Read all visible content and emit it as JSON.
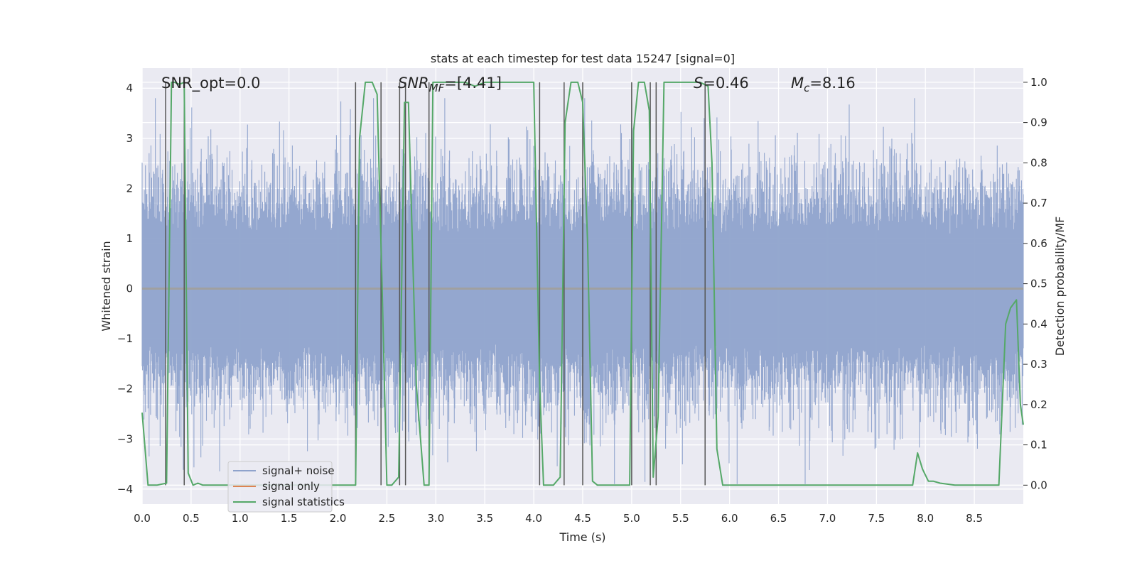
{
  "chart_data": {
    "type": "line",
    "title": "stats at each timestep for test data 15247 [signal=0]",
    "xlabel": "Time (s)",
    "ylabel": "Whitened strain",
    "y2label": "Detection probability/MF",
    "xlim": [
      0,
      9.0
    ],
    "ylim": [
      -4.3,
      4.4
    ],
    "y2lim": [
      -0.047,
      1.035
    ],
    "x_ticks": [
      "0.0",
      "0.5",
      "1.0",
      "1.5",
      "2.0",
      "2.5",
      "3.0",
      "3.5",
      "4.0",
      "4.5",
      "5.0",
      "5.5",
      "6.0",
      "6.5",
      "7.0",
      "7.5",
      "8.0",
      "8.5"
    ],
    "y_ticks": [
      "4",
      "3",
      "2",
      "1",
      "0",
      "−1",
      "−2",
      "−3",
      "−4"
    ],
    "y2_ticks": [
      "1.0",
      "0.9",
      "0.8",
      "0.7",
      "0.6",
      "0.5",
      "0.4",
      "0.3",
      "0.2",
      "0.1",
      "0.0"
    ],
    "grid": true,
    "legend_placement": "lower-left",
    "annotations": {
      "snr_opt": "SNR_opt=0.0",
      "snr_mf_base": "SNR",
      "snr_mf_sub": "MF",
      "snr_mf_value": "=[4.41]",
      "s_sym": "S",
      "s_value": "=0.46",
      "mc_base": "M",
      "mc_sub": "c",
      "mc_value": "=8.16"
    },
    "series": [
      {
        "name": "signal+ noise",
        "color": "#8fa3cc",
        "kind": "noise",
        "envelope_pos": 2.0,
        "envelope_neg": -2.0
      },
      {
        "name": "signal only",
        "color": "#dd8452",
        "kind": "flat",
        "value": 0
      },
      {
        "name": "signal statistics",
        "color": "#55a868",
        "axis": "right",
        "x": [
          0,
          0.06,
          0.15,
          0.25,
          0.3,
          0.33,
          0.38,
          0.43,
          0.47,
          0.52,
          0.57,
          0.62,
          0.68,
          0.75,
          0.9,
          1.2,
          1.5,
          1.8,
          2.0,
          2.1,
          2.18,
          2.22,
          2.28,
          2.35,
          2.4,
          2.45,
          2.5,
          2.55,
          2.62,
          2.68,
          2.72,
          2.8,
          2.88,
          2.93,
          2.97,
          3.05,
          3.2,
          3.3,
          3.4,
          3.5,
          4.0,
          4.06,
          4.1,
          4.2,
          4.27,
          4.32,
          4.38,
          4.45,
          4.5,
          4.55,
          4.6,
          4.65,
          4.8,
          4.98,
          5.02,
          5.07,
          5.13,
          5.18,
          5.22,
          5.27,
          5.33,
          5.5,
          5.7,
          5.78,
          5.82,
          5.87,
          5.93,
          6.0,
          6.5,
          7.0,
          7.5,
          7.87,
          7.92,
          7.97,
          8.03,
          8.08,
          8.15,
          8.3,
          8.5,
          8.7,
          8.75,
          8.82,
          8.87,
          8.93,
          8.97,
          9.0
        ],
        "y": [
          0.18,
          0.0,
          0.0,
          0.005,
          1.0,
          1.0,
          0.995,
          1.0,
          0.03,
          0.0,
          0.005,
          0.0,
          0.0,
          0.0,
          0.0,
          0.0,
          0.0,
          0.0,
          0.0,
          0.0,
          0.0,
          0.86,
          1.0,
          1.0,
          0.97,
          0.5,
          0.0,
          0.0,
          0.02,
          0.95,
          0.95,
          0.25,
          0.0,
          0.0,
          1.0,
          1.0,
          1.0,
          1.0,
          0.99,
          1.0,
          1.0,
          0.25,
          0.0,
          0.0,
          0.02,
          0.9,
          1.0,
          1.0,
          0.95,
          0.6,
          0.01,
          0.0,
          0.0,
          0.0,
          0.88,
          1.0,
          1.0,
          0.93,
          0.02,
          0.17,
          1.0,
          1.0,
          1.0,
          0.99,
          0.8,
          0.09,
          0.0,
          0.0,
          0.0,
          0.0,
          0.0,
          0.0,
          0.08,
          0.04,
          0.01,
          0.01,
          0.005,
          0.0,
          0.0,
          0.0,
          0.0,
          0.4,
          0.44,
          0.46,
          0.2,
          0.15
        ]
      }
    ],
    "detection_markers_x": [
      0.24,
      0.43,
      2.18,
      2.44,
      2.63,
      2.69,
      2.93,
      4.06,
      4.31,
      4.5,
      5.0,
      5.19,
      5.25,
      5.75
    ]
  },
  "legend": {
    "items": [
      "signal+ noise",
      "signal only",
      "signal statistics"
    ]
  }
}
